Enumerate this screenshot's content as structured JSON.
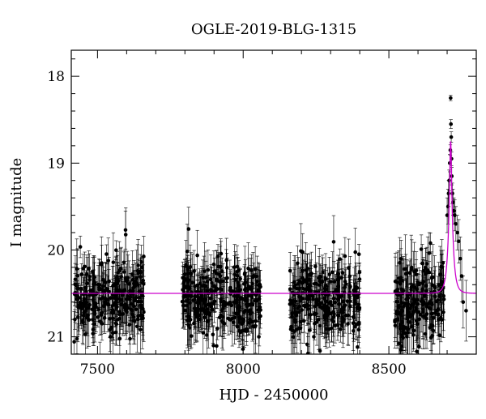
{
  "chart_data": {
    "type": "scatter",
    "title": "OGLE-2019-BLG-1315",
    "xlabel": "HJD - 2450000",
    "ylabel": "I magnitude",
    "xlim": [
      7410,
      8800
    ],
    "ylim": [
      21.2,
      17.7
    ],
    "y_inverted": true,
    "x_ticks": [
      7500,
      8000,
      8500
    ],
    "y_ticks": [
      18,
      19,
      20,
      21
    ],
    "grid": false,
    "colors": {
      "points": "#000000",
      "model": "#cc00cc",
      "axes": "#000000"
    },
    "model": {
      "name": "",
      "baseline_mag": 20.5,
      "peak_time": 8712,
      "peak_mag": 18.75,
      "timescale": 14
    },
    "seasons": [
      {
        "x_range": [
          7420,
          7660
        ],
        "y_center": 20.55,
        "y_spread": 0.45,
        "n_points": 260,
        "err_range": [
          0.1,
          0.35
        ]
      },
      {
        "x_range": [
          7790,
          8060
        ],
        "y_center": 20.55,
        "y_spread": 0.45,
        "n_points": 300,
        "err_range": [
          0.1,
          0.35
        ]
      },
      {
        "x_range": [
          8160,
          8400
        ],
        "y_center": 20.6,
        "y_spread": 0.45,
        "n_points": 260,
        "err_range": [
          0.1,
          0.35
        ]
      },
      {
        "x_range": [
          8520,
          8690
        ],
        "y_center": 20.55,
        "y_spread": 0.5,
        "n_points": 200,
        "err_range": [
          0.1,
          0.4
        ]
      }
    ],
    "peak_points": [
      {
        "x": 8700,
        "y": 19.6,
        "err": 0.2
      },
      {
        "x": 8703,
        "y": 19.5,
        "err": 0.2
      },
      {
        "x": 8705,
        "y": 19.35,
        "err": 0.15
      },
      {
        "x": 8707,
        "y": 19.2,
        "err": 0.12
      },
      {
        "x": 8709,
        "y": 19.0,
        "err": 0.1
      },
      {
        "x": 8711,
        "y": 18.85,
        "err": 0.06
      },
      {
        "x": 8712,
        "y": 18.25,
        "err": 0.03
      },
      {
        "x": 8713,
        "y": 18.55,
        "err": 0.05
      },
      {
        "x": 8714,
        "y": 18.7,
        "err": 0.06
      },
      {
        "x": 8715,
        "y": 18.95,
        "err": 0.08
      },
      {
        "x": 8716,
        "y": 19.15,
        "err": 0.1
      },
      {
        "x": 8718,
        "y": 19.35,
        "err": 0.12
      },
      {
        "x": 8720,
        "y": 19.45,
        "err": 0.15
      },
      {
        "x": 8723,
        "y": 19.55,
        "err": 0.15
      },
      {
        "x": 8726,
        "y": 19.6,
        "err": 0.18
      },
      {
        "x": 8730,
        "y": 19.7,
        "err": 0.2
      },
      {
        "x": 8735,
        "y": 19.8,
        "err": 0.2
      },
      {
        "x": 8740,
        "y": 19.9,
        "err": 0.25
      },
      {
        "x": 8745,
        "y": 20.1,
        "err": 0.25
      },
      {
        "x": 8750,
        "y": 20.3,
        "err": 0.3
      },
      {
        "x": 8755,
        "y": 20.6,
        "err": 0.3
      },
      {
        "x": 8765,
        "y": 20.7,
        "err": 0.35
      }
    ]
  }
}
